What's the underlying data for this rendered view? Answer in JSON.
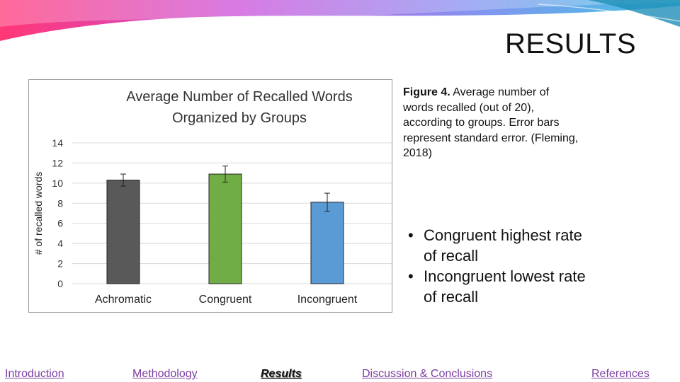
{
  "slide": {
    "title": "RESULTS",
    "accent_colors": [
      "#ff2d6f",
      "#b84bd6",
      "#6f86e8",
      "#2fb6d6"
    ]
  },
  "caption": {
    "label": "Figure 4.",
    "text": " Average number of words recalled (out of 20), according to groups.  Error bars represent standard error. (Fleming, 2018)"
  },
  "bullets": [
    "Congruent highest rate of recall",
    "Incongruent lowest rate of recall"
  ],
  "nav": {
    "introduction": "Introduction",
    "methodology": "Methodology",
    "results": "Results",
    "discussion": "Discussion & Conclusions",
    "references": "References"
  },
  "chart_data": {
    "type": "bar",
    "title": "Average Number of Recalled Words Organized by Groups",
    "title_lines": [
      "Average Number of Recalled Words",
      "Organized by Groups"
    ],
    "ylabel": "# of recalled words",
    "xlabel": "",
    "categories": [
      "Achromatic",
      "Congruent",
      "Incongruent"
    ],
    "values": [
      10.3,
      10.9,
      8.1
    ],
    "errors": [
      0.6,
      0.8,
      0.9
    ],
    "colors": [
      "#595959",
      "#70ad47",
      "#5b9bd5"
    ],
    "ylim": [
      0,
      14
    ],
    "yticks": [
      0,
      2,
      4,
      6,
      8,
      10,
      12,
      14
    ],
    "grid": true
  }
}
